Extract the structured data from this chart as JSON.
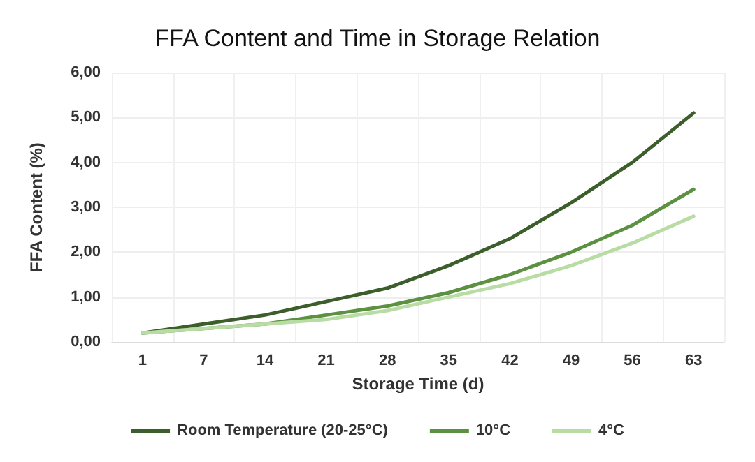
{
  "chart_data": {
    "type": "line",
    "title": "FFA Content and Time in Storage Relation",
    "xlabel": "Storage Time (d)",
    "ylabel": "FFA Content (%)",
    "categories": [
      "1",
      "7",
      "14",
      "21",
      "28",
      "35",
      "42",
      "49",
      "56",
      "63"
    ],
    "series": [
      {
        "name": "Room Temperature (20-25°C)",
        "color": "#3b5e2b",
        "values": [
          0.2,
          0.4,
          0.6,
          0.9,
          1.2,
          1.7,
          2.3,
          3.1,
          4.0,
          5.1
        ]
      },
      {
        "name": "10°C",
        "color": "#5b9141",
        "values": [
          0.2,
          0.3,
          0.4,
          0.6,
          0.8,
          1.1,
          1.5,
          2.0,
          2.6,
          3.4
        ]
      },
      {
        "name": "4°C",
        "color": "#b8dca4",
        "values": [
          0.2,
          0.3,
          0.4,
          0.5,
          0.7,
          1.0,
          1.3,
          1.7,
          2.2,
          2.8
        ]
      }
    ],
    "ylim": [
      0,
      6
    ],
    "yticks": [
      {
        "value": 0,
        "label": "0,00"
      },
      {
        "value": 1,
        "label": "1,00"
      },
      {
        "value": 2,
        "label": "2,00"
      },
      {
        "value": 3,
        "label": "3,00"
      },
      {
        "value": 4,
        "label": "4,00"
      },
      {
        "value": 5,
        "label": "5,00"
      },
      {
        "value": 6,
        "label": "6,00"
      }
    ],
    "grid": true,
    "legend": "bottom",
    "marker": "none",
    "line_style": "solid"
  }
}
